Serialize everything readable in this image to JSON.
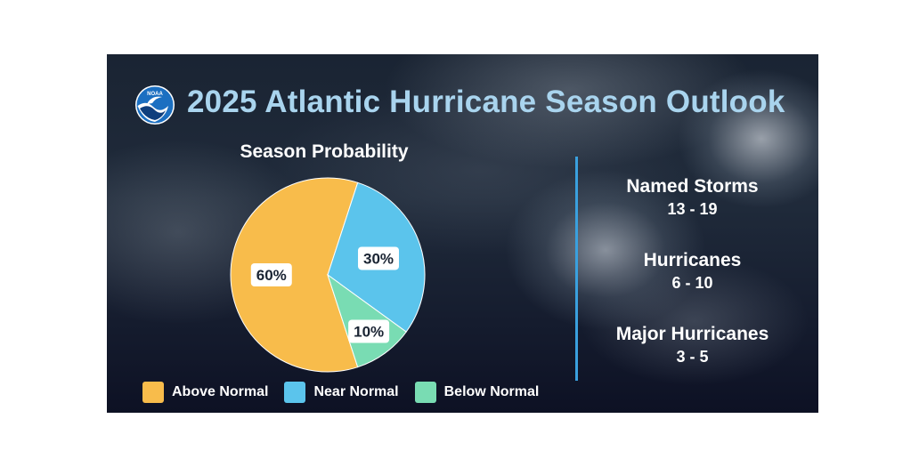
{
  "banner": {
    "logo_text": "NOAA",
    "title": "2025 Atlantic Hurricane Season Outlook"
  },
  "chart_data": {
    "type": "pie",
    "title": "Season Probability",
    "categories": [
      "Above Normal",
      "Near Normal",
      "Below Normal"
    ],
    "values": [
      60,
      30,
      10
    ],
    "labels": [
      "60%",
      "30%",
      "10%"
    ],
    "colors": [
      "#f8bc4b",
      "#5bc4ec",
      "#79dcb3"
    ],
    "legend": "bottom"
  },
  "stats": [
    {
      "label": "Named Storms",
      "value": "13 - 19"
    },
    {
      "label": "Hurricanes",
      "value": "6 - 10"
    },
    {
      "label": "Major Hurricanes",
      "value": "3 - 5"
    }
  ]
}
